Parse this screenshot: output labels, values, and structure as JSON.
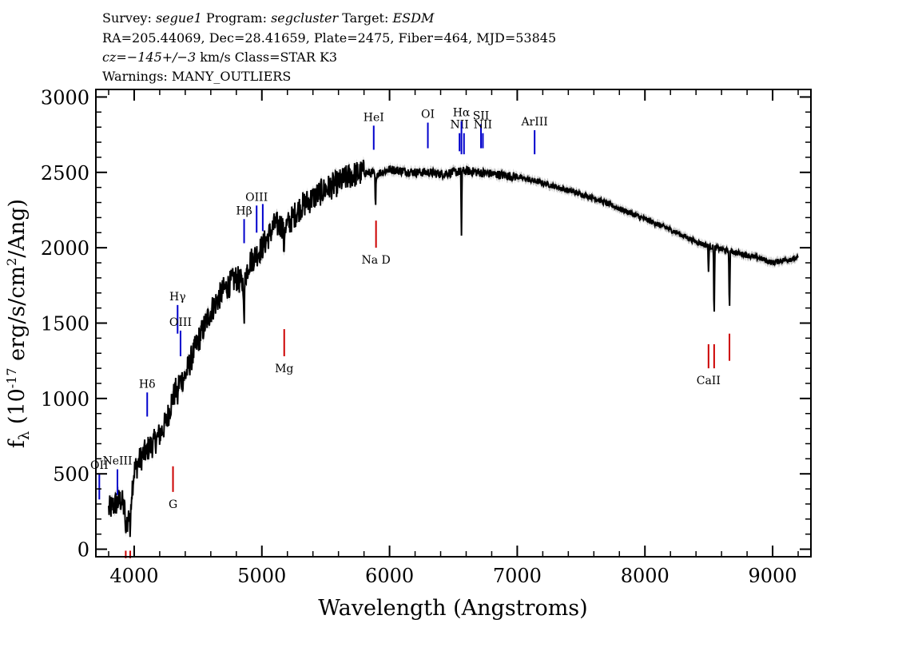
{
  "header": {
    "line1": {
      "survey_label": "Survey:",
      "survey": "segue1",
      "program_label": "Program:",
      "program": "segcluster",
      "target_label": "Target:",
      "target": "ESDM"
    },
    "line2": "RA=205.44069, Dec=28.41659, Plate=2475, Fiber=464, MJD=53845",
    "line3": {
      "cz": "cz=−145+/−3",
      "rest": "km/s Class=STAR K3"
    },
    "line4": "Warnings: MANY_OUTLIERS"
  },
  "chart_data": {
    "type": "line",
    "xlabel": "Wavelength (Angstroms)",
    "ylabel": "f_λ (10^-17 erg/s/cm²/Ang)",
    "xlim": [
      3700,
      9300
    ],
    "ylim": [
      -50,
      3050
    ],
    "x_ticks": [
      4000,
      5000,
      6000,
      7000,
      8000,
      9000
    ],
    "y_ticks": [
      0,
      500,
      1000,
      1500,
      2000,
      2500,
      3000
    ],
    "grid": false,
    "colors": {
      "spectrum": "#000000",
      "error": "#bdbdbd",
      "emission": "#0000cc",
      "absorption": "#cc0000"
    },
    "series": [
      {
        "x": [
          3800,
          3850,
          3900,
          3950,
          4000,
          4050,
          4100,
          4150,
          4200,
          4250,
          4300,
          4350,
          4400,
          4450,
          4500,
          4600,
          4700,
          4800,
          4850,
          4900,
          5000,
          5100,
          5200,
          5300,
          5400,
          5500,
          5600,
          5700,
          5800,
          5900,
          6000,
          6100,
          6200,
          6300,
          6400,
          6500,
          6600,
          6700,
          6800,
          6900,
          7000,
          7200,
          7400,
          7600,
          7800,
          8000,
          8200,
          8400,
          8500,
          8600,
          8700,
          8800,
          8900,
          9000,
          9100,
          9200
        ],
        "y": [
          260,
          300,
          330,
          180,
          520,
          600,
          660,
          700,
          760,
          840,
          1000,
          1100,
          1150,
          1270,
          1380,
          1580,
          1720,
          1800,
          1760,
          1900,
          2000,
          2150,
          2150,
          2270,
          2330,
          2390,
          2430,
          2480,
          2500,
          2490,
          2520,
          2510,
          2500,
          2500,
          2490,
          2500,
          2510,
          2500,
          2490,
          2480,
          2470,
          2430,
          2380,
          2330,
          2260,
          2190,
          2120,
          2040,
          2010,
          1990,
          1970,
          1950,
          1930,
          1900,
          1920,
          1930
        ]
      }
    ],
    "spikes": [
      {
        "x": 3934,
        "y": 70
      },
      {
        "x": 3969,
        "y": 40
      },
      {
        "x": 4101,
        "y": 620
      },
      {
        "x": 4340,
        "y": 960
      },
      {
        "x": 4861,
        "y": 1440
      },
      {
        "x": 5173,
        "y": 1920
      },
      {
        "x": 5890,
        "y": 2240
      },
      {
        "x": 6563,
        "y": 2080
      },
      {
        "x": 8498,
        "y": 1840
      },
      {
        "x": 8542,
        "y": 1490
      },
      {
        "x": 8662,
        "y": 1540
      }
    ],
    "emission_lines": [
      {
        "label": "OII",
        "x": 3727,
        "y0": 330,
        "y1": 500
      },
      {
        "label": "NeIII",
        "x": 3869,
        "y0": 360,
        "y1": 530
      },
      {
        "label": "Hδ",
        "x": 4102,
        "y0": 880,
        "y1": 1040
      },
      {
        "label": "Hγ",
        "x": 4340,
        "y0": 1430,
        "y1": 1620
      },
      {
        "label": "OIII",
        "x": 4363,
        "y0": 1280,
        "y1": 1450
      },
      {
        "label": "Hβ",
        "x": 4861,
        "y0": 2030,
        "y1": 2190
      },
      {
        "label": "OIII",
        "x": 4959,
        "y0": 2100,
        "y1": 2280
      },
      {
        "label": "",
        "x": 5007,
        "y0": 2110,
        "y1": 2290
      },
      {
        "label": "HeI",
        "x": 5876,
        "y0": 2650,
        "y1": 2810
      },
      {
        "label": "OI",
        "x": 6300,
        "y0": 2660,
        "y1": 2830
      },
      {
        "label": "NII",
        "x": 6548,
        "y0": 2640,
        "y1": 2760
      },
      {
        "label": "Hα",
        "x": 6563,
        "y0": 2620,
        "y1": 2840
      },
      {
        "label": "",
        "x": 6583,
        "y0": 2620,
        "y1": 2760
      },
      {
        "label": "SII",
        "x": 6716,
        "y0": 2660,
        "y1": 2820
      },
      {
        "label": "NII",
        "x": 6731,
        "y0": 2660,
        "y1": 2760
      },
      {
        "label": "ArIII",
        "x": 7136,
        "y0": 2620,
        "y1": 2780
      }
    ],
    "absorption_lines": [
      {
        "label": "",
        "x": 3934,
        "y0": -60,
        "y1": -10
      },
      {
        "label": "",
        "x": 3969,
        "y0": -60,
        "y1": -10
      },
      {
        "label": "G",
        "x": 4304,
        "y0": 380,
        "y1": 550
      },
      {
        "label": "Mg",
        "x": 5175,
        "y0": 1280,
        "y1": 1460
      },
      {
        "label": "Na D",
        "x": 5894,
        "y0": 2000,
        "y1": 2180
      },
      {
        "label": "CaII",
        "x": 8498,
        "y0": 1200,
        "y1": 1360
      },
      {
        "label": "",
        "x": 8542,
        "y0": 1200,
        "y1": 1360
      },
      {
        "label": "",
        "x": 8662,
        "y0": 1250,
        "y1": 1430
      }
    ]
  }
}
